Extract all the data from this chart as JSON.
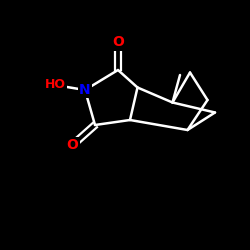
{
  "background_color": "#000000",
  "bond_color": "#ffffff",
  "bond_width": 1.8,
  "atom_colors": {
    "O": "#ff0000",
    "N": "#0000ff",
    "C": "#ffffff",
    "H": "#ffffff"
  },
  "figsize": [
    2.5,
    2.5
  ],
  "dpi": 100
}
